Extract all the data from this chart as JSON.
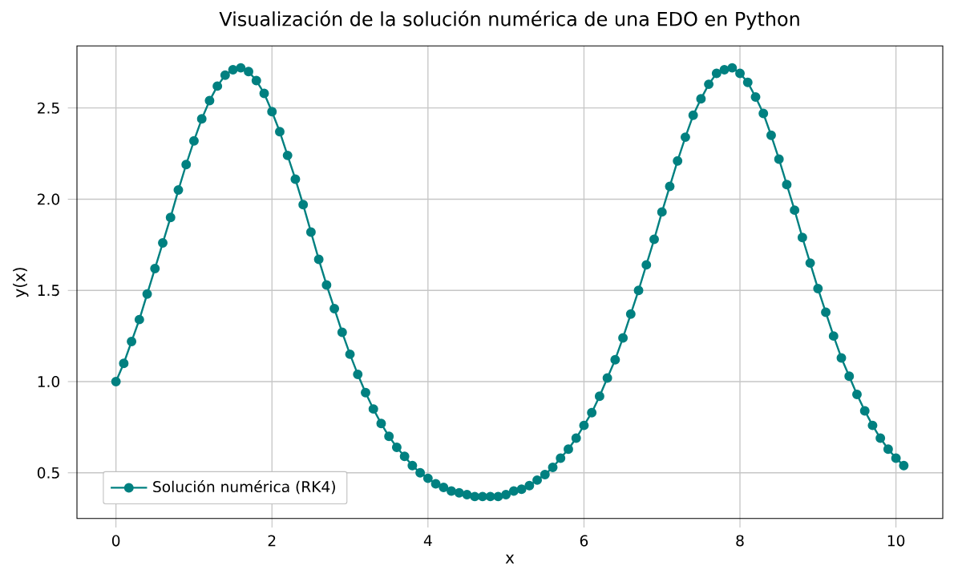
{
  "chart_data": {
    "type": "line",
    "title": "Visualización de la solución numérica de una EDO en Python",
    "xlabel": "x",
    "ylabel": "y(x)",
    "x": [
      0,
      0.1,
      0.2,
      0.3,
      0.4,
      0.5,
      0.6,
      0.7,
      0.8,
      0.9,
      1.0,
      1.1,
      1.2,
      1.3,
      1.4,
      1.5,
      1.6,
      1.7,
      1.8,
      1.9,
      2.0,
      2.1,
      2.2,
      2.3,
      2.4,
      2.5,
      2.6,
      2.7,
      2.8,
      2.9,
      3.0,
      3.1,
      3.2,
      3.3,
      3.4,
      3.5,
      3.6,
      3.7,
      3.8,
      3.9,
      4.0,
      4.1,
      4.2,
      4.3,
      4.4,
      4.5,
      4.6,
      4.7,
      4.8,
      4.9,
      5.0,
      5.1,
      5.2,
      5.3,
      5.4,
      5.5,
      5.6,
      5.7,
      5.8,
      5.9,
      6.0,
      6.1,
      6.2,
      6.3,
      6.4,
      6.5,
      6.6,
      6.7,
      6.8,
      6.9,
      7.0,
      7.1,
      7.2,
      7.3,
      7.4,
      7.5,
      7.6,
      7.7,
      7.8,
      7.9,
      8.0,
      8.1,
      8.2,
      8.3,
      8.4,
      8.5,
      8.6,
      8.7,
      8.8,
      8.9,
      9.0,
      9.1,
      9.2,
      9.3,
      9.4,
      9.5,
      9.6,
      9.7,
      9.8,
      9.9,
      10.0,
      10.1
    ],
    "series": [
      {
        "name": "Solución numérica (RK4)",
        "color": "#008080",
        "values": [
          1.0,
          1.1,
          1.22,
          1.34,
          1.48,
          1.62,
          1.76,
          1.9,
          2.05,
          2.19,
          2.32,
          2.44,
          2.54,
          2.62,
          2.68,
          2.71,
          2.72,
          2.7,
          2.65,
          2.58,
          2.48,
          2.37,
          2.24,
          2.11,
          1.97,
          1.82,
          1.67,
          1.53,
          1.4,
          1.27,
          1.15,
          1.04,
          0.94,
          0.85,
          0.77,
          0.7,
          0.64,
          0.59,
          0.54,
          0.5,
          0.47,
          0.44,
          0.42,
          0.4,
          0.39,
          0.38,
          0.37,
          0.37,
          0.37,
          0.37,
          0.38,
          0.4,
          0.41,
          0.43,
          0.46,
          0.49,
          0.53,
          0.58,
          0.63,
          0.69,
          0.76,
          0.83,
          0.92,
          1.02,
          1.12,
          1.24,
          1.37,
          1.5,
          1.64,
          1.78,
          1.93,
          2.07,
          2.21,
          2.34,
          2.46,
          2.55,
          2.63,
          2.69,
          2.71,
          2.72,
          2.69,
          2.64,
          2.56,
          2.47,
          2.35,
          2.22,
          2.08,
          1.94,
          1.79,
          1.65,
          1.51,
          1.38,
          1.25,
          1.13,
          1.03,
          0.93,
          0.84,
          0.76,
          0.69,
          0.63,
          0.58,
          0.54
        ]
      }
    ],
    "xlim": [
      -0.5,
      10.6
    ],
    "ylim": [
      0.25,
      2.84
    ],
    "xticks": [
      0,
      2,
      4,
      6,
      8,
      10
    ],
    "yticks": [
      0.5,
      {
        "value": 1,
        "label": "1.0"
      },
      1.5,
      {
        "value": 2,
        "label": "2.0"
      },
      2.5
    ],
    "grid": true,
    "legend": "bottom left",
    "marker": "circle",
    "line_style": "solid"
  }
}
